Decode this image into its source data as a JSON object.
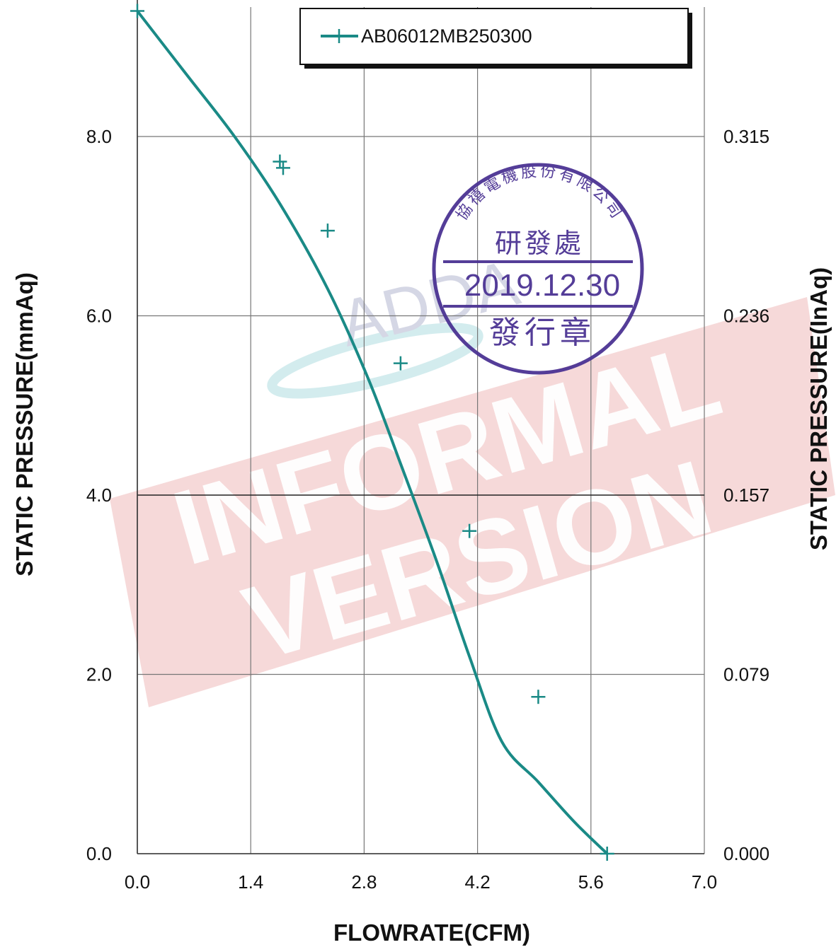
{
  "chart_data": {
    "type": "line",
    "xlabel": "FLOWRATE(CFM)",
    "ylabel": "STATIC PRESSURE(mmAq)",
    "y2label": "STATIC PRESSURE(InAq)",
    "xlim": [
      0.0,
      7.0
    ],
    "ylim": [
      0.0,
      9.4
    ],
    "x_ticks": [
      "0.0",
      "1.4",
      "2.8",
      "4.2",
      "5.6",
      "7.0"
    ],
    "y_ticks": [
      "0.0",
      "2.0",
      "4.0",
      "6.0",
      "8.0"
    ],
    "y2_ticks": [
      "0.000",
      "0.079",
      "0.157",
      "0.236",
      "0.315"
    ],
    "grid": true,
    "legend_position": "top-right",
    "series": [
      {
        "name": "AB06012MB250300",
        "color": "#1a8a86",
        "x": [
          0.0,
          0.6,
          1.2,
          1.76,
          2.35,
          2.85,
          3.25,
          3.7,
          4.1,
          4.5,
          4.95,
          5.4,
          5.8
        ],
        "y": [
          9.4,
          8.7,
          8.0,
          7.25,
          6.3,
          5.3,
          4.35,
          3.25,
          2.2,
          1.25,
          0.8,
          0.35,
          0.0
        ]
      }
    ],
    "markers": {
      "x": [
        0.0,
        1.76,
        1.8,
        2.35,
        3.25,
        4.1,
        4.95,
        5.8
      ],
      "y": [
        9.4,
        7.72,
        7.65,
        6.95,
        5.47,
        3.6,
        1.75,
        0.0
      ]
    }
  },
  "watermark": {
    "line1": "INFORMAL",
    "line2": "VERSION",
    "color": "#f3c8c8",
    "logo": "ADDA"
  },
  "stamp": {
    "company": "協禧電機股份有限公司",
    "department": "研發處",
    "date": "2019.12.30",
    "footer": "發行章",
    "color": "#4b3393"
  }
}
